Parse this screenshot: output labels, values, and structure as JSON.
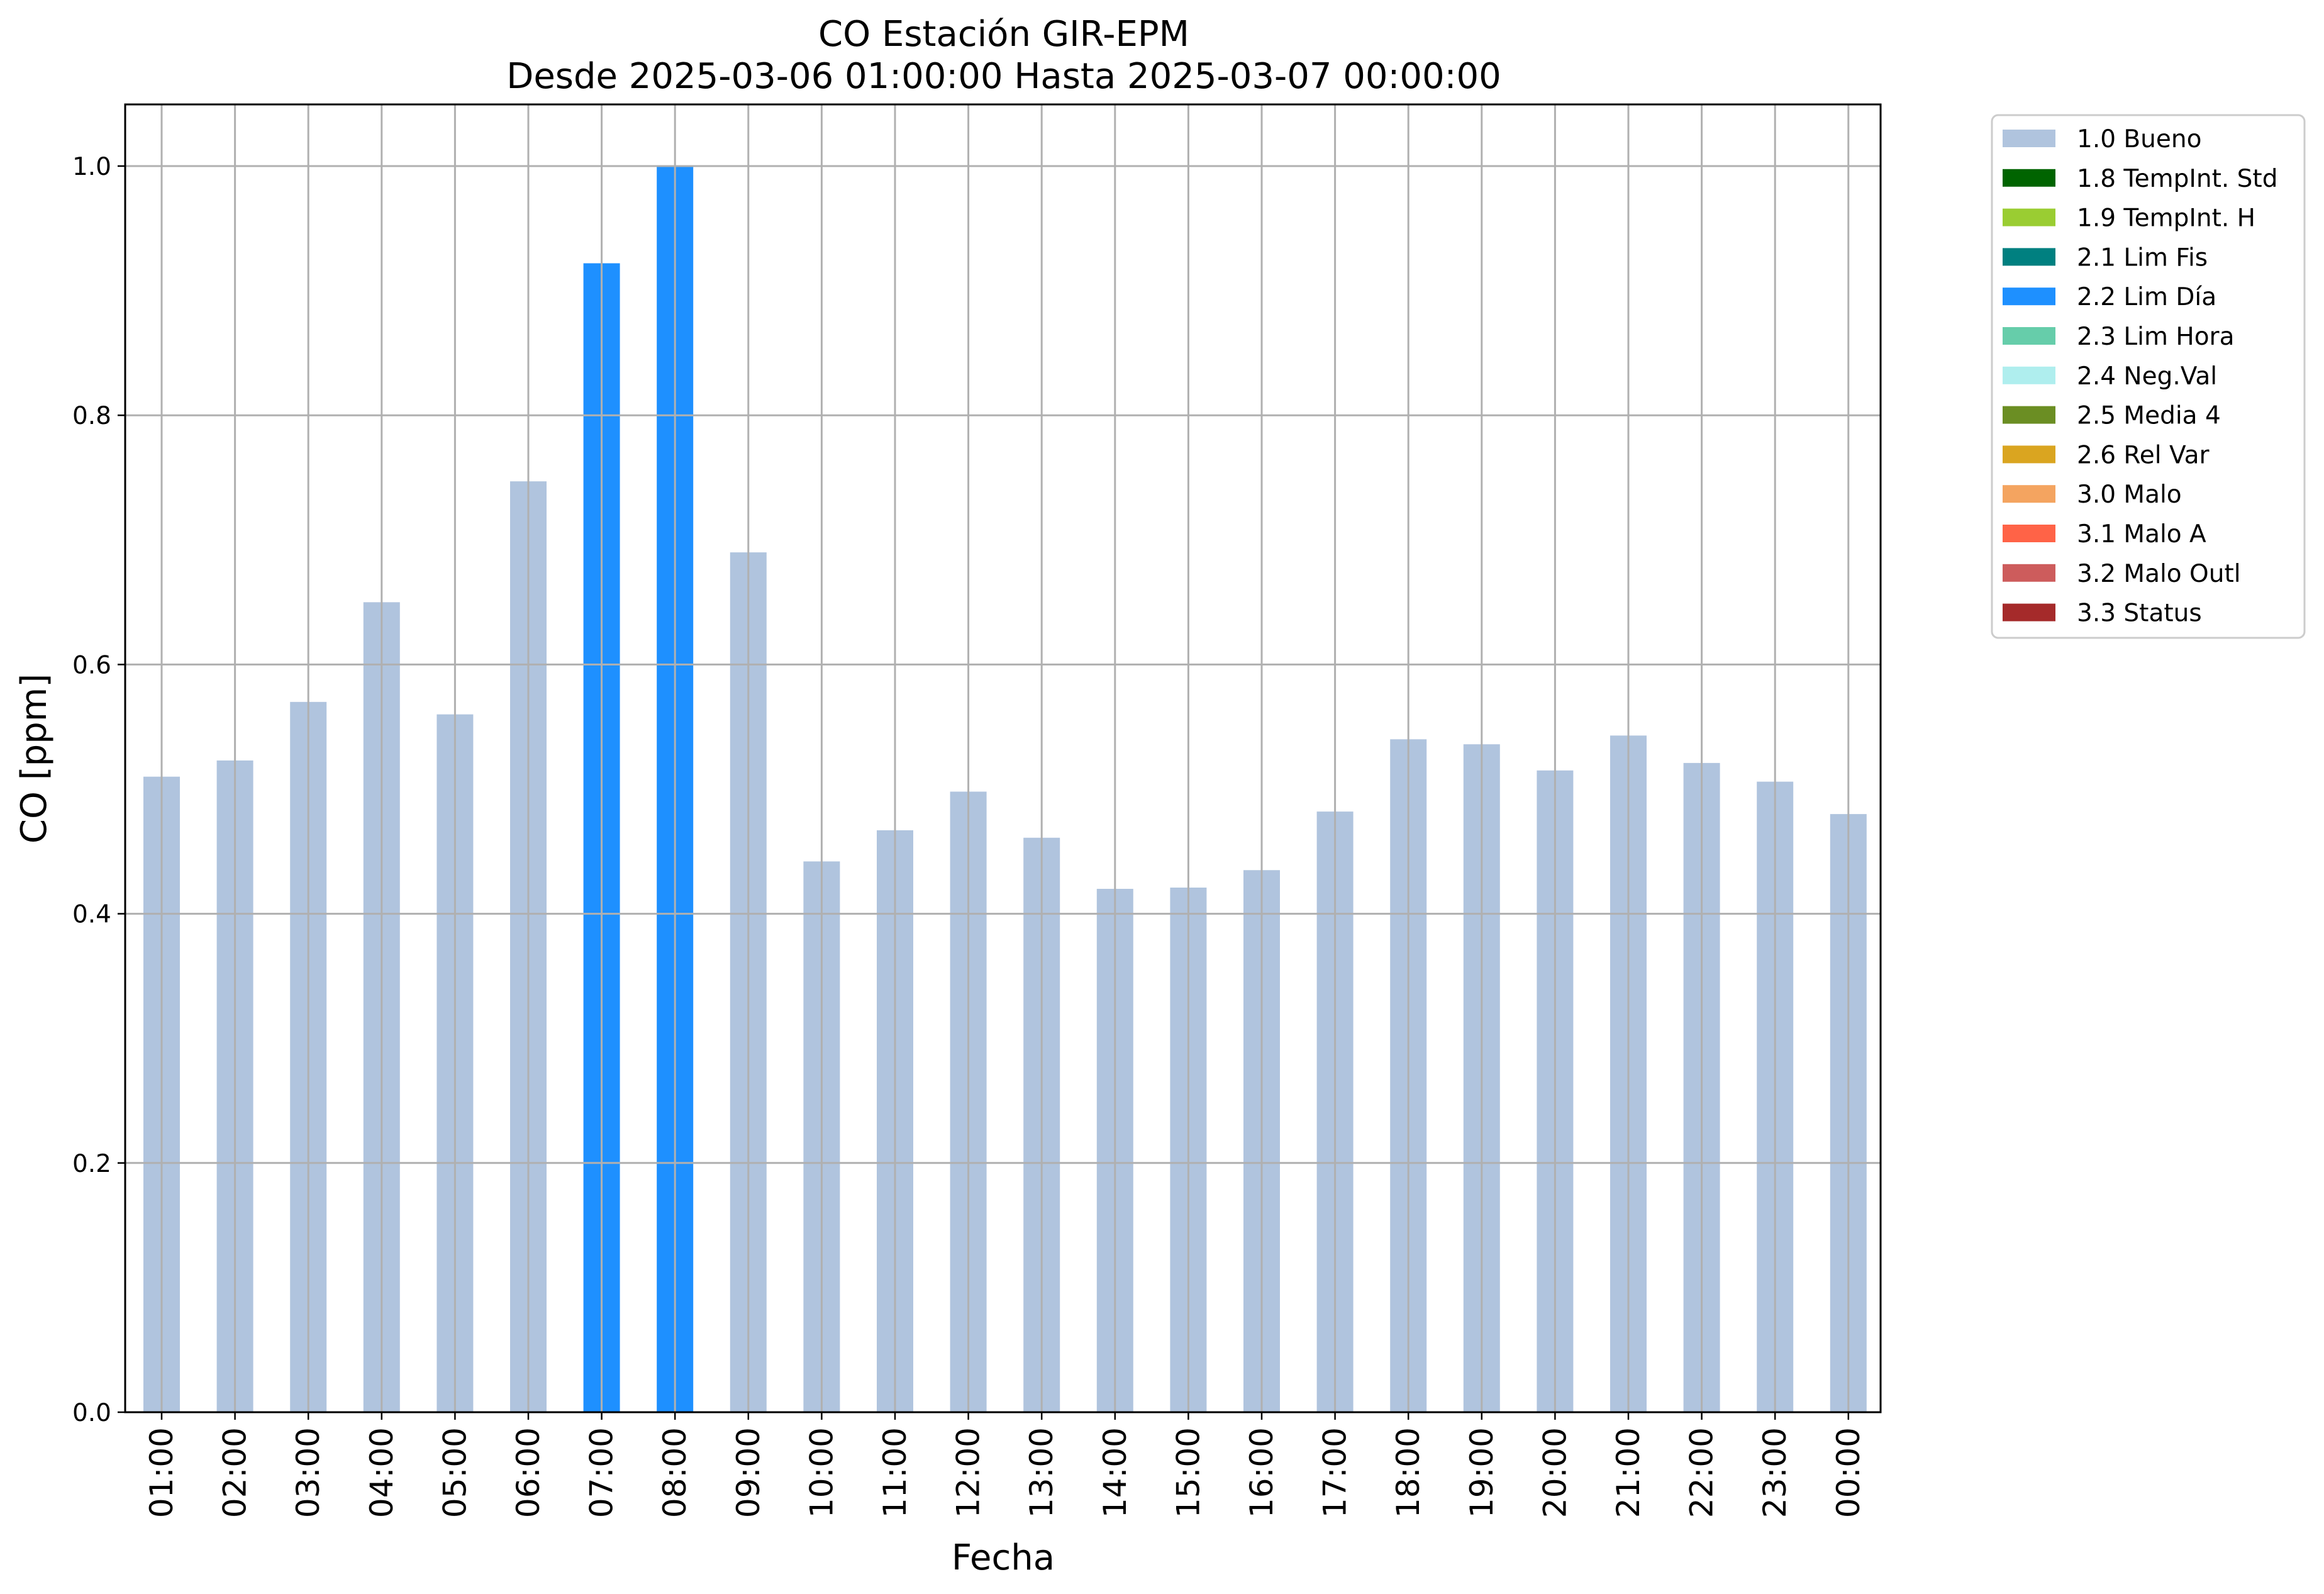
{
  "chart_data": {
    "type": "bar",
    "title_line1": "CO Estación GIR-EPM",
    "title_line2": "Desde 2025-03-06 01:00:00 Hasta 2025-03-07 00:00:00",
    "xlabel": "Fecha",
    "ylabel": "CO [ppm]",
    "ylim": [
      0,
      1.05
    ],
    "yticks": [
      "0.0",
      "0.2",
      "0.4",
      "0.6",
      "0.8",
      "1.0"
    ],
    "grid": true,
    "legend_position": "outside-right-top",
    "categories": [
      "01:00",
      "02:00",
      "03:00",
      "04:00",
      "05:00",
      "06:00",
      "07:00",
      "08:00",
      "09:00",
      "10:00",
      "11:00",
      "12:00",
      "13:00",
      "14:00",
      "15:00",
      "16:00",
      "17:00",
      "18:00",
      "19:00",
      "20:00",
      "21:00",
      "22:00",
      "23:00",
      "00:00"
    ],
    "values": [
      0.51,
      0.523,
      0.57,
      0.65,
      0.56,
      0.747,
      0.922,
      1.0,
      0.69,
      0.442,
      0.467,
      0.498,
      0.461,
      0.42,
      0.421,
      0.435,
      0.482,
      0.54,
      0.536,
      0.515,
      0.543,
      0.521,
      0.506,
      0.48
    ],
    "bar_flags": [
      "1.0 Bueno",
      "1.0 Bueno",
      "1.0 Bueno",
      "1.0 Bueno",
      "1.0 Bueno",
      "1.0 Bueno",
      "2.2 Lim Día",
      "2.2 Lim Día",
      "1.0 Bueno",
      "1.0 Bueno",
      "1.0 Bueno",
      "1.0 Bueno",
      "1.0 Bueno",
      "1.0 Bueno",
      "1.0 Bueno",
      "1.0 Bueno",
      "1.0 Bueno",
      "1.0 Bueno",
      "1.0 Bueno",
      "1.0 Bueno",
      "1.0 Bueno",
      "1.0 Bueno",
      "1.0 Bueno",
      "1.0 Bueno"
    ],
    "legend": [
      {
        "label": "1.0 Bueno",
        "color": "#b0c4de"
      },
      {
        "label": "1.8 TempInt. Std",
        "color": "#006400"
      },
      {
        "label": "1.9 TempInt. H",
        "color": "#9acd32"
      },
      {
        "label": "2.1 Lim Fis",
        "color": "#008080"
      },
      {
        "label": "2.2 Lim Día",
        "color": "#1e90ff"
      },
      {
        "label": "2.3 Lim Hora",
        "color": "#66cdaa"
      },
      {
        "label": "2.4 Neg.Val",
        "color": "#afeeee"
      },
      {
        "label": "2.5 Media 4",
        "color": "#6b8e23"
      },
      {
        "label": "2.6 Rel Var",
        "color": "#daa520"
      },
      {
        "label": "3.0 Malo",
        "color": "#f4a460"
      },
      {
        "label": "3.1 Malo A",
        "color": "#ff6347"
      },
      {
        "label": "3.2 Malo Outl",
        "color": "#cd5c5c"
      },
      {
        "label": "3.3 Status",
        "color": "#a52a2a"
      }
    ]
  }
}
